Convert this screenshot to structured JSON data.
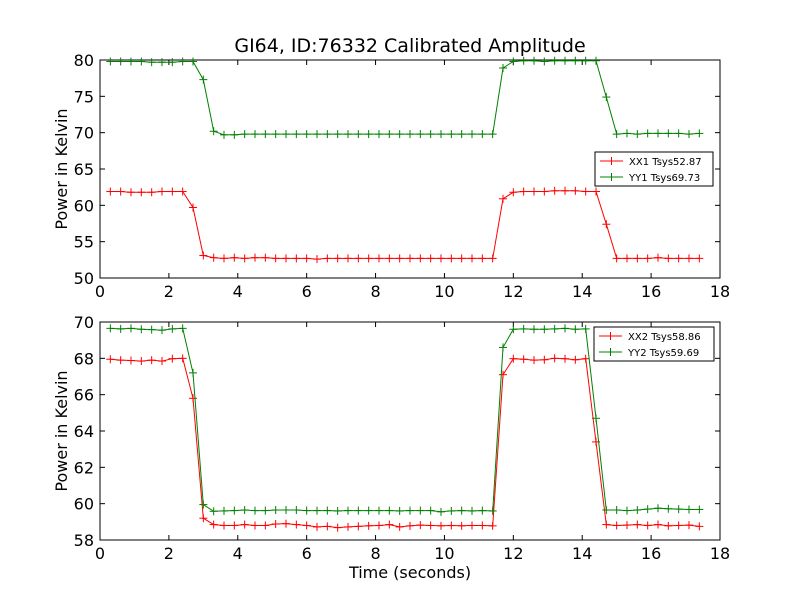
{
  "figure": {
    "title": "GI64, ID:76332 Calibrated Amplitude",
    "xlabel": "Time (seconds)"
  },
  "colors": {
    "red": "#ff0000",
    "green": "#008000"
  },
  "chart_data": [
    {
      "type": "line",
      "title": "GI64, ID:76332 Calibrated Amplitude",
      "xlabel": "",
      "ylabel": "Power in Kelvin",
      "xlim": [
        0,
        18
      ],
      "ylim": [
        50,
        80
      ],
      "xticks": [
        "0",
        "2",
        "4",
        "6",
        "8",
        "10",
        "12",
        "14",
        "16",
        "18"
      ],
      "yticks": [
        "50",
        "55",
        "60",
        "65",
        "70",
        "75",
        "80"
      ],
      "grid": false,
      "legend_position": "right",
      "x": [
        0.3,
        0.6,
        0.9,
        1.2,
        1.5,
        1.8,
        2.1,
        2.4,
        2.7,
        3.0,
        3.3,
        3.6,
        3.9,
        4.2,
        4.5,
        4.8,
        5.1,
        5.4,
        5.7,
        6.0,
        6.3,
        6.6,
        6.9,
        7.2,
        7.5,
        7.8,
        8.1,
        8.4,
        8.7,
        9.0,
        9.3,
        9.6,
        9.9,
        10.2,
        10.5,
        10.8,
        11.1,
        11.4,
        11.7,
        12.0,
        12.3,
        12.6,
        12.9,
        13.2,
        13.5,
        13.8,
        14.1,
        14.4,
        14.7,
        15.0,
        15.3,
        15.6,
        15.9,
        16.2,
        16.5,
        16.8,
        17.1,
        17.4
      ],
      "series": [
        {
          "name": "XX1 Tsys52.87",
          "color": "#ff0000",
          "values": [
            61.9,
            61.9,
            61.8,
            61.8,
            61.8,
            61.9,
            61.9,
            61.9,
            59.7,
            53.1,
            52.8,
            52.7,
            52.8,
            52.7,
            52.8,
            52.8,
            52.7,
            52.7,
            52.7,
            52.7,
            52.6,
            52.7,
            52.7,
            52.7,
            52.7,
            52.7,
            52.7,
            52.7,
            52.7,
            52.7,
            52.7,
            52.7,
            52.7,
            52.7,
            52.7,
            52.7,
            52.7,
            52.7,
            60.9,
            61.8,
            61.9,
            61.9,
            61.9,
            62.0,
            62.0,
            62.0,
            61.9,
            61.9,
            57.4,
            52.7,
            52.7,
            52.7,
            52.7,
            52.8,
            52.7,
            52.7,
            52.7,
            52.7
          ]
        },
        {
          "name": "YY1 Tsys69.73",
          "color": "#008000",
          "values": [
            79.8,
            79.8,
            79.8,
            79.8,
            79.7,
            79.7,
            79.7,
            79.8,
            79.8,
            77.3,
            70.2,
            69.7,
            69.7,
            69.8,
            69.8,
            69.8,
            69.8,
            69.8,
            69.8,
            69.8,
            69.8,
            69.8,
            69.8,
            69.8,
            69.8,
            69.8,
            69.8,
            69.8,
            69.8,
            69.8,
            69.8,
            69.8,
            69.8,
            69.8,
            69.8,
            69.8,
            69.8,
            69.8,
            78.9,
            79.8,
            79.9,
            79.9,
            79.8,
            79.9,
            79.9,
            79.9,
            79.9,
            79.9,
            74.9,
            69.8,
            69.9,
            69.8,
            69.9,
            69.9,
            69.9,
            69.9,
            69.8,
            69.9
          ]
        }
      ]
    },
    {
      "type": "line",
      "title": "",
      "xlabel": "Time (seconds)",
      "ylabel": "Power in Kelvin",
      "xlim": [
        0,
        18
      ],
      "ylim": [
        58,
        70
      ],
      "xticks": [
        "0",
        "2",
        "4",
        "6",
        "8",
        "10",
        "12",
        "14",
        "16",
        "18"
      ],
      "yticks": [
        "58",
        "60",
        "62",
        "64",
        "66",
        "68",
        "70"
      ],
      "grid": false,
      "legend_position": "top-right",
      "x": [
        0.3,
        0.6,
        0.9,
        1.2,
        1.5,
        1.8,
        2.1,
        2.4,
        2.7,
        3.0,
        3.3,
        3.6,
        3.9,
        4.2,
        4.5,
        4.8,
        5.1,
        5.4,
        5.7,
        6.0,
        6.3,
        6.6,
        6.9,
        7.2,
        7.5,
        7.8,
        8.1,
        8.4,
        8.7,
        9.0,
        9.3,
        9.6,
        9.9,
        10.2,
        10.5,
        10.8,
        11.1,
        11.4,
        11.7,
        12.0,
        12.3,
        12.6,
        12.9,
        13.2,
        13.5,
        13.8,
        14.1,
        14.4,
        14.7,
        15.0,
        15.3,
        15.6,
        15.9,
        16.2,
        16.5,
        16.8,
        17.1,
        17.4
      ],
      "series": [
        {
          "name": "XX2 Tsys58.86",
          "color": "#ff0000",
          "values": [
            67.95,
            67.9,
            67.88,
            67.85,
            67.9,
            67.85,
            67.98,
            68.0,
            65.8,
            59.2,
            58.85,
            58.8,
            58.8,
            58.85,
            58.8,
            58.8,
            58.88,
            58.9,
            58.85,
            58.8,
            58.72,
            58.75,
            58.68,
            58.72,
            58.75,
            58.78,
            58.8,
            58.85,
            58.72,
            58.78,
            58.82,
            58.8,
            58.78,
            58.8,
            58.78,
            58.8,
            58.8,
            58.78,
            67.1,
            67.98,
            67.95,
            67.9,
            67.92,
            68.0,
            67.98,
            67.92,
            67.98,
            63.4,
            58.85,
            58.8,
            58.82,
            58.85,
            58.8,
            58.85,
            58.78,
            58.8,
            58.82,
            58.75
          ],
          "x_override": [
            0.3,
            0.6,
            0.9,
            1.2,
            1.5,
            1.8,
            2.1,
            2.4,
            2.7,
            3.0,
            3.3,
            3.6,
            3.9,
            4.2,
            4.5,
            4.8,
            5.1,
            5.4,
            5.7,
            6.0,
            6.3,
            6.6,
            6.9,
            7.2,
            7.5,
            7.8,
            8.1,
            8.4,
            8.7,
            9.0,
            9.3,
            9.6,
            9.9,
            10.2,
            10.5,
            10.8,
            11.1,
            11.4,
            11.7,
            12.0,
            12.3,
            12.6,
            12.9,
            13.2,
            13.5,
            13.8,
            14.1,
            14.4,
            14.7,
            15.0,
            15.3,
            15.6,
            15.9,
            16.2,
            16.5,
            16.8,
            17.1,
            17.4
          ]
        },
        {
          "name": "YY2 Tsys59.69",
          "color": "#008000",
          "values": [
            69.65,
            69.62,
            69.65,
            69.6,
            69.58,
            69.55,
            69.62,
            69.65,
            67.2,
            59.95,
            59.58,
            59.6,
            59.62,
            59.65,
            59.62,
            59.62,
            59.65,
            59.65,
            59.65,
            59.62,
            59.62,
            59.62,
            59.6,
            59.62,
            59.62,
            59.62,
            59.62,
            59.62,
            59.6,
            59.62,
            59.62,
            59.62,
            59.55,
            59.6,
            59.62,
            59.6,
            59.62,
            59.6,
            68.6,
            69.6,
            69.62,
            69.6,
            69.6,
            69.62,
            69.65,
            69.6,
            69.62,
            64.7,
            59.65,
            59.65,
            59.62,
            59.65,
            59.7,
            59.75,
            59.72,
            59.7,
            59.68,
            59.68
          ]
        }
      ]
    }
  ]
}
